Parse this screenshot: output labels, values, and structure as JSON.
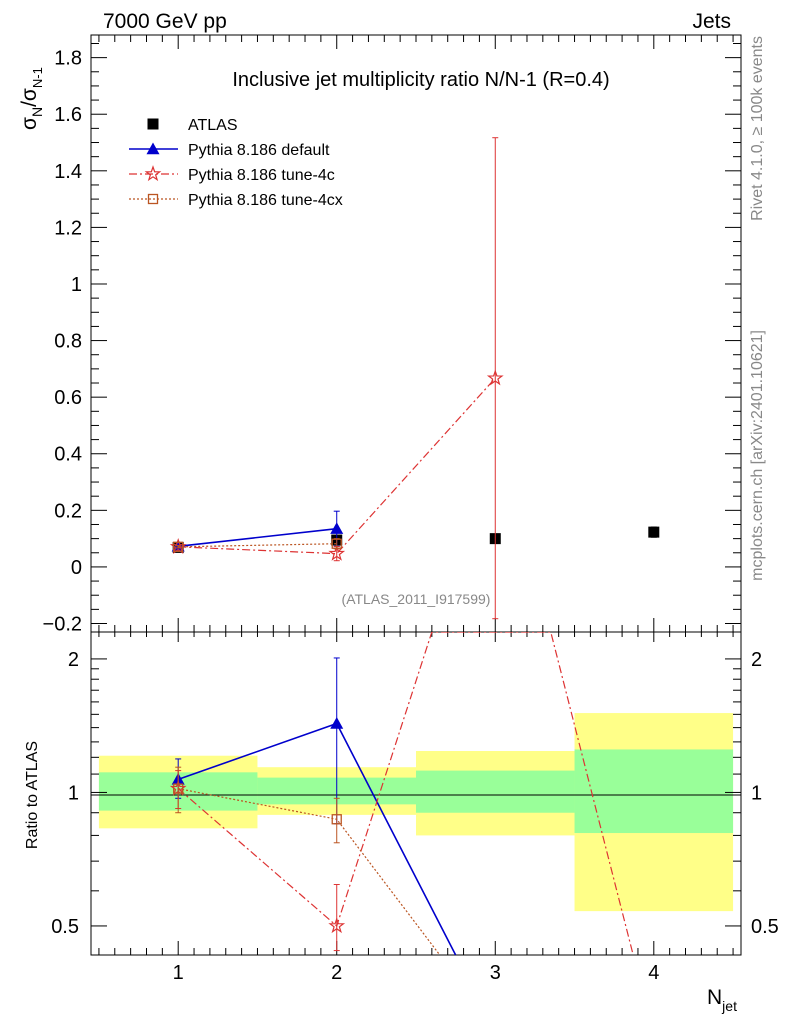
{
  "header": {
    "left": "7000 GeV pp",
    "right": "Jets"
  },
  "side_text": {
    "rivet": "Rivet 4.1.0, ≥ 100k events",
    "mcplots": "mcplots.cern.ch [arXiv:2401.10621]"
  },
  "colors": {
    "data": "#000000",
    "default": "#0000cc",
    "tune4c": "#dd3333",
    "tune4cx": "#bb5522",
    "band_inner": "#99ff99",
    "band_outer": "#ffff88"
  },
  "chart_data": {
    "type": "line",
    "title": "Inclusive jet multiplicity ratio N/N-1 (R=0.4)",
    "ylabel_main": "σ",
    "ylabel_main_sub1": "N",
    "ylabel_main_mid": "/σ",
    "ylabel_main_sub2": "N-1",
    "xlabel_main": "N",
    "xlabel_sub": "jet",
    "ylabel_ratio": "Ratio to ATLAS",
    "analysis_label": "(ATLAS_2011_I917599)",
    "xlim": [
      0.45,
      4.55
    ],
    "ylim_main": [
      -0.23,
      1.88
    ],
    "ylim_ratio": [
      0.43,
      2.3
    ],
    "x_ticks": [
      "1",
      "2",
      "3",
      "4"
    ],
    "y_ticks_main": [
      "−0.2",
      "0",
      "0.2",
      "0.4",
      "0.6",
      "0.8",
      "1",
      "1.2",
      "1.4",
      "1.6",
      "1.8"
    ],
    "y_ticks_ratio": [
      "0.5",
      "1",
      "2"
    ],
    "series": [
      {
        "name": "ATLAS",
        "style": "data",
        "x": [
          1,
          2,
          3,
          4
        ],
        "y": [
          0.069,
          0.095,
          0.1,
          0.123
        ],
        "yerr": [
          0.004,
          0.008,
          0.012,
          0.018
        ]
      },
      {
        "name": "Pythia 8.186 default",
        "style": "default",
        "x": [
          1,
          2
        ],
        "y": [
          0.073,
          0.135
        ],
        "yerr": [
          0.004,
          0.062
        ],
        "ratio": {
          "x": [
            1,
            2,
            2.75
          ],
          "y": [
            1.07,
            1.43,
            0.43
          ],
          "yerr_lo": [
            0.1,
            0.58,
            0
          ],
          "yerr_hi": [
            0.12,
            0.58,
            0
          ]
        }
      },
      {
        "name": "Pythia 8.186 tune-4c",
        "style": "tune4c",
        "x": [
          1,
          2,
          3
        ],
        "y": [
          0.071,
          0.047,
          0.667
        ],
        "yerr": [
          0.004,
          0.025,
          0.85
        ],
        "ratio": {
          "x": [
            1,
            2,
            2.6,
            3.35,
            3.87
          ],
          "y": [
            1.02,
            0.5,
            2.3,
            2.3,
            0.43
          ],
          "yerr_lo": [
            0.1,
            0.12,
            0,
            0,
            0
          ],
          "yerr_hi": [
            0.1,
            0.12,
            0,
            0,
            0
          ]
        }
      },
      {
        "name": "Pythia 8.186 tune-4cx",
        "style": "tune4cx",
        "x": [
          1,
          2
        ],
        "y": [
          0.071,
          0.082
        ],
        "yerr": [
          0.004,
          0.018
        ],
        "ratio": {
          "x": [
            1,
            2,
            2.65
          ],
          "y": [
            1.02,
            0.87,
            0.43
          ],
          "yerr_lo": [
            0.12,
            0.1,
            0
          ],
          "yerr_hi": [
            0.12,
            0.1,
            0
          ]
        }
      }
    ],
    "ratio_bands": [
      {
        "x_lo": 0.5,
        "x_hi": 1.5,
        "inner": [
          0.91,
          1.11
        ],
        "outer": [
          0.83,
          1.21
        ]
      },
      {
        "x_lo": 1.5,
        "x_hi": 2.5,
        "inner": [
          0.94,
          1.08
        ],
        "outer": [
          0.89,
          1.14
        ]
      },
      {
        "x_lo": 2.5,
        "x_hi": 3.5,
        "inner": [
          0.9,
          1.12
        ],
        "outer": [
          0.8,
          1.24
        ]
      },
      {
        "x_lo": 3.5,
        "x_hi": 4.5,
        "inner": [
          0.81,
          1.25
        ],
        "outer": [
          0.54,
          1.51
        ]
      }
    ]
  }
}
